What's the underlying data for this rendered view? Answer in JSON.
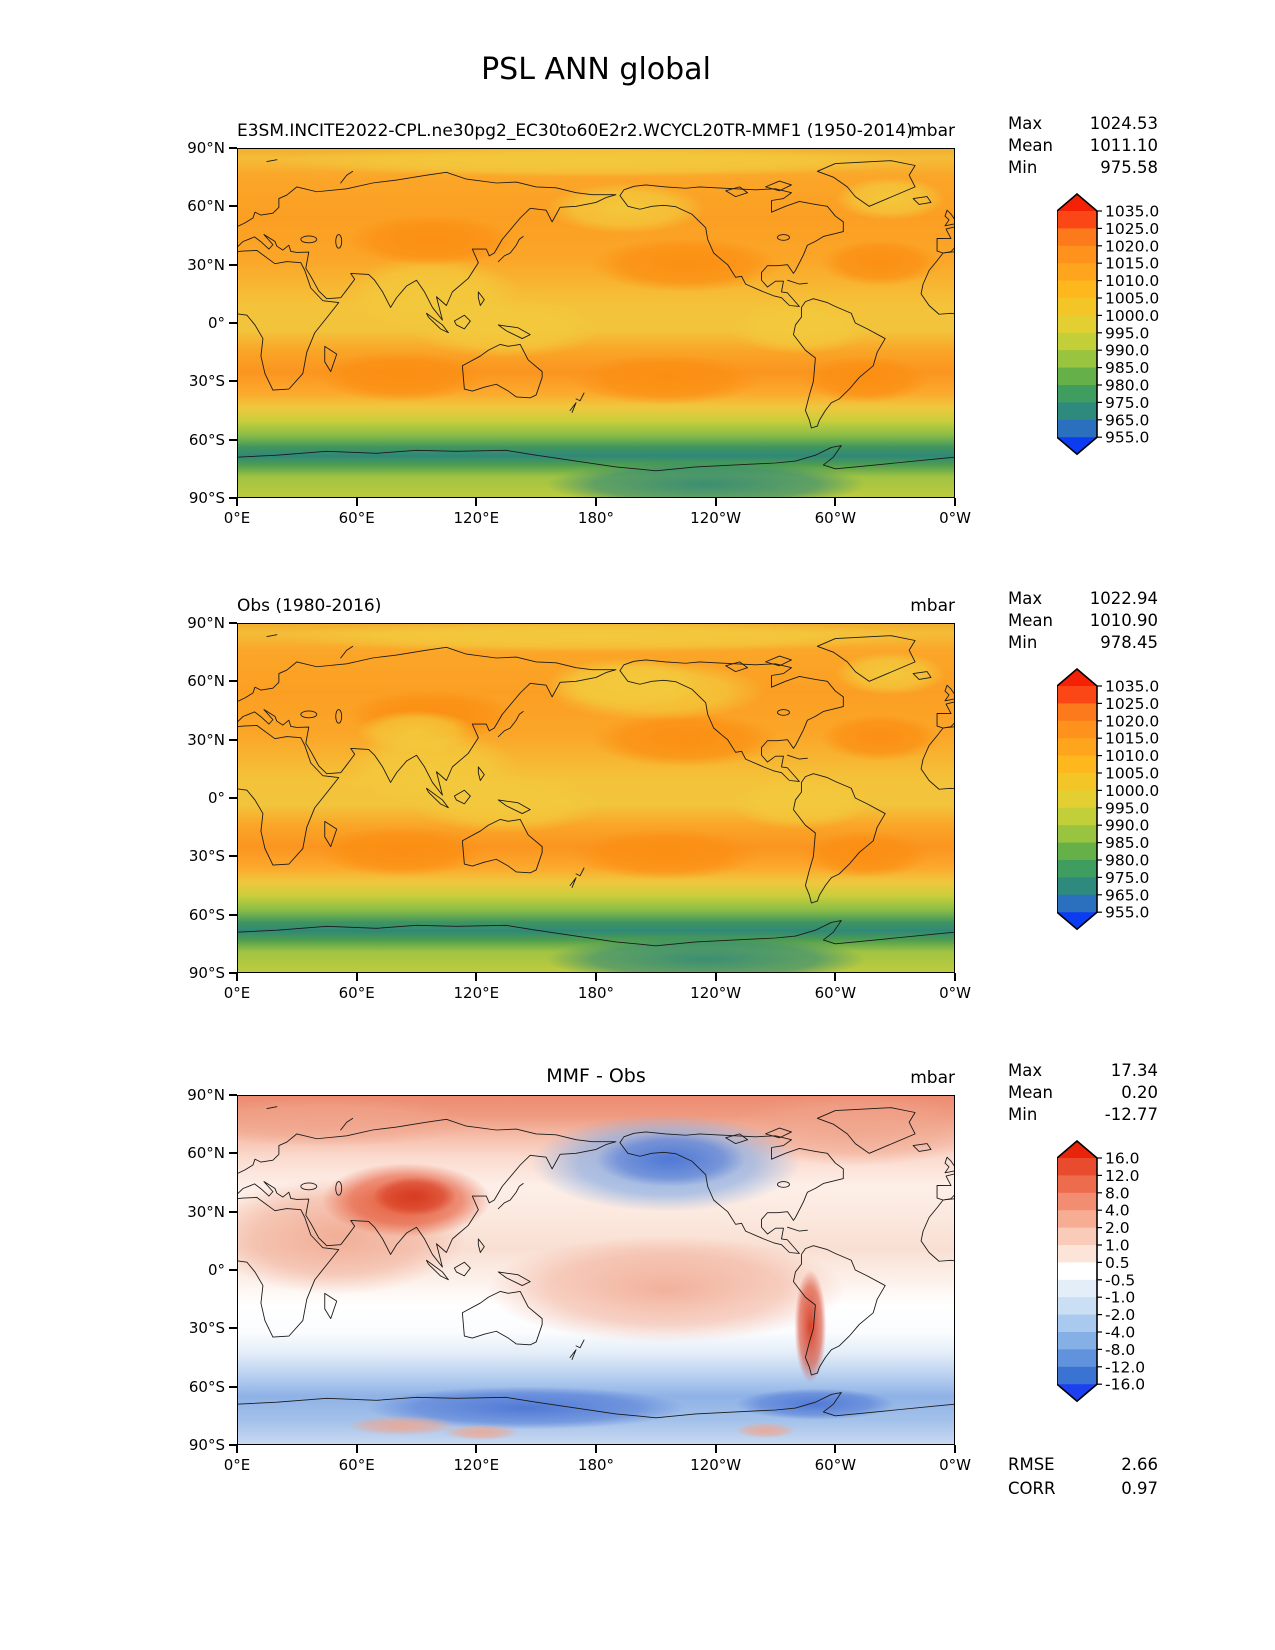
{
  "title": "PSL ANN global",
  "panels": [
    {
      "id": "model",
      "subtitle": "E3SM.INCITE2022-CPL.ne30pg2_EC30to60E2r2.WCYCL20TR-MMF1 (1950-2014)",
      "units": "mbar",
      "stats": {
        "rows": [
          {
            "label": "Max",
            "value": "1024.53"
          },
          {
            "label": "Mean",
            "value": "1011.10"
          },
          {
            "label": "Min",
            "value": "975.58"
          }
        ]
      },
      "colorbar": {
        "tick_labels": [
          "1035.0",
          "1025.0",
          "1020.0",
          "1015.0",
          "1010.0",
          "1005.0",
          "1000.0",
          "995.0",
          "990.0",
          "985.0",
          "980.0",
          "975.0",
          "965.0",
          "955.0"
        ],
        "colors": [
          "#F52106",
          "#FB4715",
          "#FD7A1C",
          "#FE921C",
          "#FFA41D",
          "#FFB71E",
          "#F4C527",
          "#E3CF31",
          "#C3CF39",
          "#98C43F",
          "#66B04A",
          "#3F9D5F",
          "#2F8A7E",
          "#2B6FBF",
          "#0C3CF2"
        ]
      },
      "axes": {
        "y_tick_labels": [
          "90°N",
          "60°N",
          "30°N",
          "0°",
          "30°S",
          "60°S",
          "90°S"
        ],
        "x_tick_labels": [
          "0°E",
          "60°E",
          "120°E",
          "180°",
          "120°W",
          "60°W",
          "0°W"
        ]
      }
    },
    {
      "id": "obs",
      "subtitle": "Obs (1980-2016)",
      "units": "mbar",
      "stats": {
        "rows": [
          {
            "label": "Max",
            "value": "1022.94"
          },
          {
            "label": "Mean",
            "value": "1010.90"
          },
          {
            "label": "Min",
            "value": "978.45"
          }
        ]
      },
      "colorbar": {
        "tick_labels": [
          "1035.0",
          "1025.0",
          "1020.0",
          "1015.0",
          "1010.0",
          "1005.0",
          "1000.0",
          "995.0",
          "990.0",
          "985.0",
          "980.0",
          "975.0",
          "965.0",
          "955.0"
        ],
        "colors": [
          "#F52106",
          "#FB4715",
          "#FD7A1C",
          "#FE921C",
          "#FFA41D",
          "#FFB71E",
          "#F4C527",
          "#E3CF31",
          "#C3CF39",
          "#98C43F",
          "#66B04A",
          "#3F9D5F",
          "#2F8A7E",
          "#2B6FBF",
          "#0C3CF2"
        ]
      },
      "axes": {
        "y_tick_labels": [
          "90°N",
          "60°N",
          "30°N",
          "0°",
          "30°S",
          "60°S",
          "90°S"
        ],
        "x_tick_labels": [
          "0°E",
          "60°E",
          "120°E",
          "180°",
          "120°W",
          "60°W",
          "0°W"
        ]
      }
    },
    {
      "id": "diff",
      "subtitle": "MMF - Obs",
      "units": "mbar",
      "stats": {
        "rows": [
          {
            "label": "Max",
            "value": "17.34"
          },
          {
            "label": "Mean",
            "value": "0.20"
          },
          {
            "label": "Min",
            "value": "-12.77"
          }
        ]
      },
      "colorbar": {
        "tick_labels": [
          "16.0",
          "12.0",
          "8.0",
          "4.0",
          "2.0",
          "1.0",
          "0.5",
          "-0.5",
          "-1.0",
          "-2.0",
          "-4.0",
          "-8.0",
          "-12.0",
          "-16.0"
        ],
        "colors": [
          "#E8250C",
          "#E94B2E",
          "#EE6C4E",
          "#F38D72",
          "#F7AC94",
          "#FACBB8",
          "#FDE4D8",
          "#FFFFFF",
          "#E4EEF9",
          "#CADEF4",
          "#A9CAEE",
          "#85B0E6",
          "#6193DD",
          "#3B73D3",
          "#1C40F0"
        ]
      },
      "extra_stats": {
        "rows": [
          {
            "label": "RMSE",
            "value": "2.66"
          },
          {
            "label": "CORR",
            "value": "0.97"
          }
        ]
      },
      "axes": {
        "y_tick_labels": [
          "90°N",
          "60°N",
          "30°N",
          "0°",
          "30°S",
          "60°S",
          "90°S"
        ],
        "x_tick_labels": [
          "0°E",
          "60°E",
          "120°E",
          "180°",
          "120°W",
          "60°W",
          "0°W"
        ]
      }
    }
  ],
  "chart_data": [
    {
      "type": "heatmap",
      "subtype": "filled-contour-global-map",
      "title": "E3SM.INCITE2022-CPL.ne30pg2_EC30to60E2r2.WCYCL20TR-MMF1 (1950-2014)",
      "variable": "PSL",
      "season": "ANN",
      "region": "global",
      "units": "mbar",
      "stats": {
        "max": 1024.53,
        "mean": 1011.1,
        "min": 975.58
      },
      "contour_levels": [
        955.0,
        965.0,
        975.0,
        980.0,
        985.0,
        990.0,
        995.0,
        1000.0,
        1005.0,
        1010.0,
        1015.0,
        1020.0,
        1025.0,
        1035.0
      ],
      "lat_ticks": [
        90,
        60,
        30,
        0,
        -30,
        -60,
        -90
      ],
      "lon_ticks_labels": [
        "0°E",
        "60°E",
        "120°E",
        "180°",
        "120°W",
        "60°W",
        "0°W"
      ],
      "legend_position": "right colorbar, arrows both ends",
      "notes": "Sea-level pressure: orange subtropical highs (~1015-1025), yellow equatorial band (~1005-1010), green-to-blue circumpolar trough near 60S (975-995)."
    },
    {
      "type": "heatmap",
      "subtype": "filled-contour-global-map",
      "title": "Obs (1980-2016)",
      "variable": "PSL",
      "season": "ANN",
      "region": "global",
      "units": "mbar",
      "stats": {
        "max": 1022.94,
        "mean": 1010.9,
        "min": 978.45
      },
      "contour_levels": [
        955.0,
        965.0,
        975.0,
        980.0,
        985.0,
        990.0,
        995.0,
        1000.0,
        1005.0,
        1010.0,
        1015.0,
        1020.0,
        1025.0,
        1035.0
      ],
      "lat_ticks": [
        90,
        60,
        30,
        0,
        -30,
        -60,
        -90
      ],
      "lon_ticks_labels": [
        "0°E",
        "60°E",
        "120°E",
        "180°",
        "120°W",
        "60°W",
        "0°W"
      ],
      "legend_position": "right colorbar, arrows both ends",
      "notes": "Observed PSL climatology, same color levels as model panel."
    },
    {
      "type": "heatmap",
      "subtype": "filled-contour-global-map-difference",
      "title": "MMF - Obs",
      "variable": "PSL bias",
      "season": "ANN",
      "region": "global",
      "units": "mbar",
      "stats": {
        "max": 17.34,
        "mean": 0.2,
        "min": -12.77,
        "rmse": 2.66,
        "corr": 0.97
      },
      "contour_levels": [
        -16.0,
        -12.0,
        -8.0,
        -4.0,
        -2.0,
        -1.0,
        -0.5,
        0.5,
        1.0,
        2.0,
        4.0,
        8.0,
        12.0,
        16.0
      ],
      "lat_ticks": [
        90,
        60,
        30,
        0,
        -30,
        -60,
        -90
      ],
      "lon_ticks_labels": [
        "0°E",
        "60°E",
        "120°E",
        "180°",
        "120°W",
        "60°W",
        "0°W"
      ],
      "legend_position": "right colorbar, arrows both ends",
      "notes": "Red positive bias over NH continents/Tibet/Andes, blue negative bias over North Pacific-Bering and Southern Ocean."
    }
  ]
}
